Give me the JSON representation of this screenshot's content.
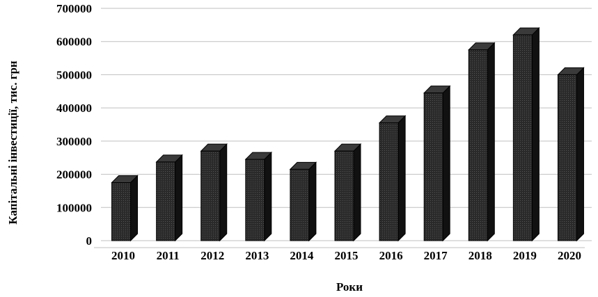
{
  "chart_data": {
    "type": "bar",
    "title": "",
    "xlabel": "Роки",
    "ylabel": "Капітальні інвестиції, тис. грн",
    "categories": [
      "2010",
      "2011",
      "2012",
      "2013",
      "2014",
      "2015",
      "2016",
      "2017",
      "2018",
      "2019",
      "2020"
    ],
    "values": [
      175000,
      237000,
      270000,
      245000,
      215000,
      270000,
      355000,
      445000,
      575000,
      620000,
      500000
    ],
    "ylim": [
      0,
      700000
    ],
    "yticks": [
      0,
      100000,
      200000,
      300000,
      400000,
      500000,
      600000,
      700000
    ],
    "ytick_labels": [
      "0",
      "100000",
      "200000",
      "300000",
      "400000",
      "500000",
      "600000",
      "700000"
    ],
    "grid": true,
    "legend": "none",
    "bar_color": "#1a1a1a",
    "style": "3d-column"
  }
}
